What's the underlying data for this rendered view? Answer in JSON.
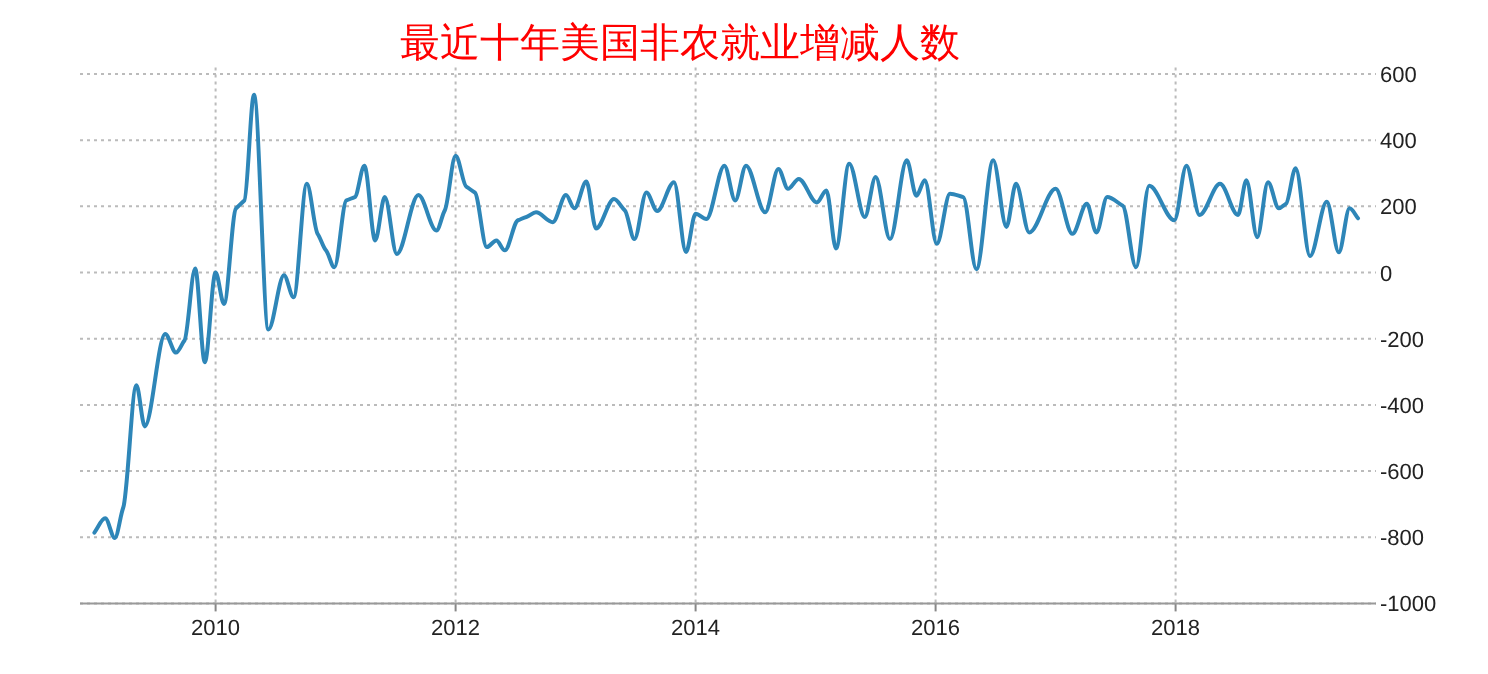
{
  "chart_data": {
    "type": "line",
    "title": "最近十年美国非农就业增减人数",
    "x": [
      2008.99,
      2009.08,
      2009.16,
      2009.23,
      2009.34,
      2009.41,
      2009.58,
      2009.67,
      2009.74,
      2009.83,
      2009.91,
      2010.0,
      2010.07,
      2010.17,
      2010.24,
      2010.32,
      2010.44,
      2010.57,
      2010.65,
      2010.76,
      2010.85,
      2010.92,
      2010.99,
      2011.09,
      2011.16,
      2011.24,
      2011.33,
      2011.41,
      2011.51,
      2011.69,
      2011.84,
      2011.91,
      2012.0,
      2012.09,
      2012.16,
      2012.26,
      2012.34,
      2012.41,
      2012.52,
      2012.59,
      2012.67,
      2012.81,
      2012.92,
      2012.99,
      2013.09,
      2013.17,
      2013.32,
      2013.41,
      2013.49,
      2013.59,
      2013.68,
      2013.82,
      2013.92,
      2014.0,
      2014.09,
      2014.24,
      2014.33,
      2014.42,
      2014.58,
      2014.69,
      2014.77,
      2014.86,
      2015.01,
      2015.09,
      2015.17,
      2015.28,
      2015.41,
      2015.5,
      2015.62,
      2015.76,
      2015.84,
      2015.91,
      2016.01,
      2016.12,
      2016.23,
      2016.34,
      2016.48,
      2016.59,
      2016.67,
      2016.78,
      2017.0,
      2017.14,
      2017.26,
      2017.34,
      2017.43,
      2017.56,
      2017.67,
      2017.78,
      2017.99,
      2018.09,
      2018.2,
      2018.37,
      2018.52,
      2018.59,
      2018.68,
      2018.77,
      2018.86,
      2018.92,
      2019.0,
      2019.12,
      2019.26,
      2019.36,
      2019.45,
      2019.52
    ],
    "series": [
      {
        "color": "#2e86b8",
        "values": [
          -786,
          -743,
          -802,
          -711,
          -341,
          -465,
          -186,
          -242,
          -206,
          12,
          -271,
          0,
          -95,
          194,
          218,
          537,
          -172,
          -8,
          -75,
          268,
          117,
          67,
          16,
          218,
          228,
          323,
          97,
          228,
          56,
          234,
          127,
          188,
          353,
          259,
          242,
          77,
          97,
          67,
          158,
          168,
          182,
          152,
          234,
          194,
          275,
          133,
          222,
          188,
          101,
          242,
          186,
          273,
          62,
          178,
          162,
          323,
          218,
          323,
          182,
          313,
          253,
          283,
          212,
          248,
          73,
          329,
          168,
          289,
          101,
          339,
          232,
          279,
          87,
          238,
          228,
          10,
          339,
          138,
          268,
          121,
          253,
          117,
          208,
          121,
          228,
          202,
          16,
          262,
          158,
          323,
          174,
          268,
          174,
          279,
          107,
          273,
          194,
          208,
          315,
          50,
          214,
          61,
          194,
          164
        ]
      }
    ],
    "xlim": [
      2008.87,
      2019.67
    ],
    "xticks": [
      2010,
      2012,
      2014,
      2016,
      2018
    ],
    "ylim": [
      -1000,
      620
    ],
    "yticks": [
      -1000,
      -800,
      -600,
      -400,
      -200,
      0,
      200,
      400,
      600
    ],
    "grid": true,
    "marker": "none",
    "line_style": "solid"
  }
}
